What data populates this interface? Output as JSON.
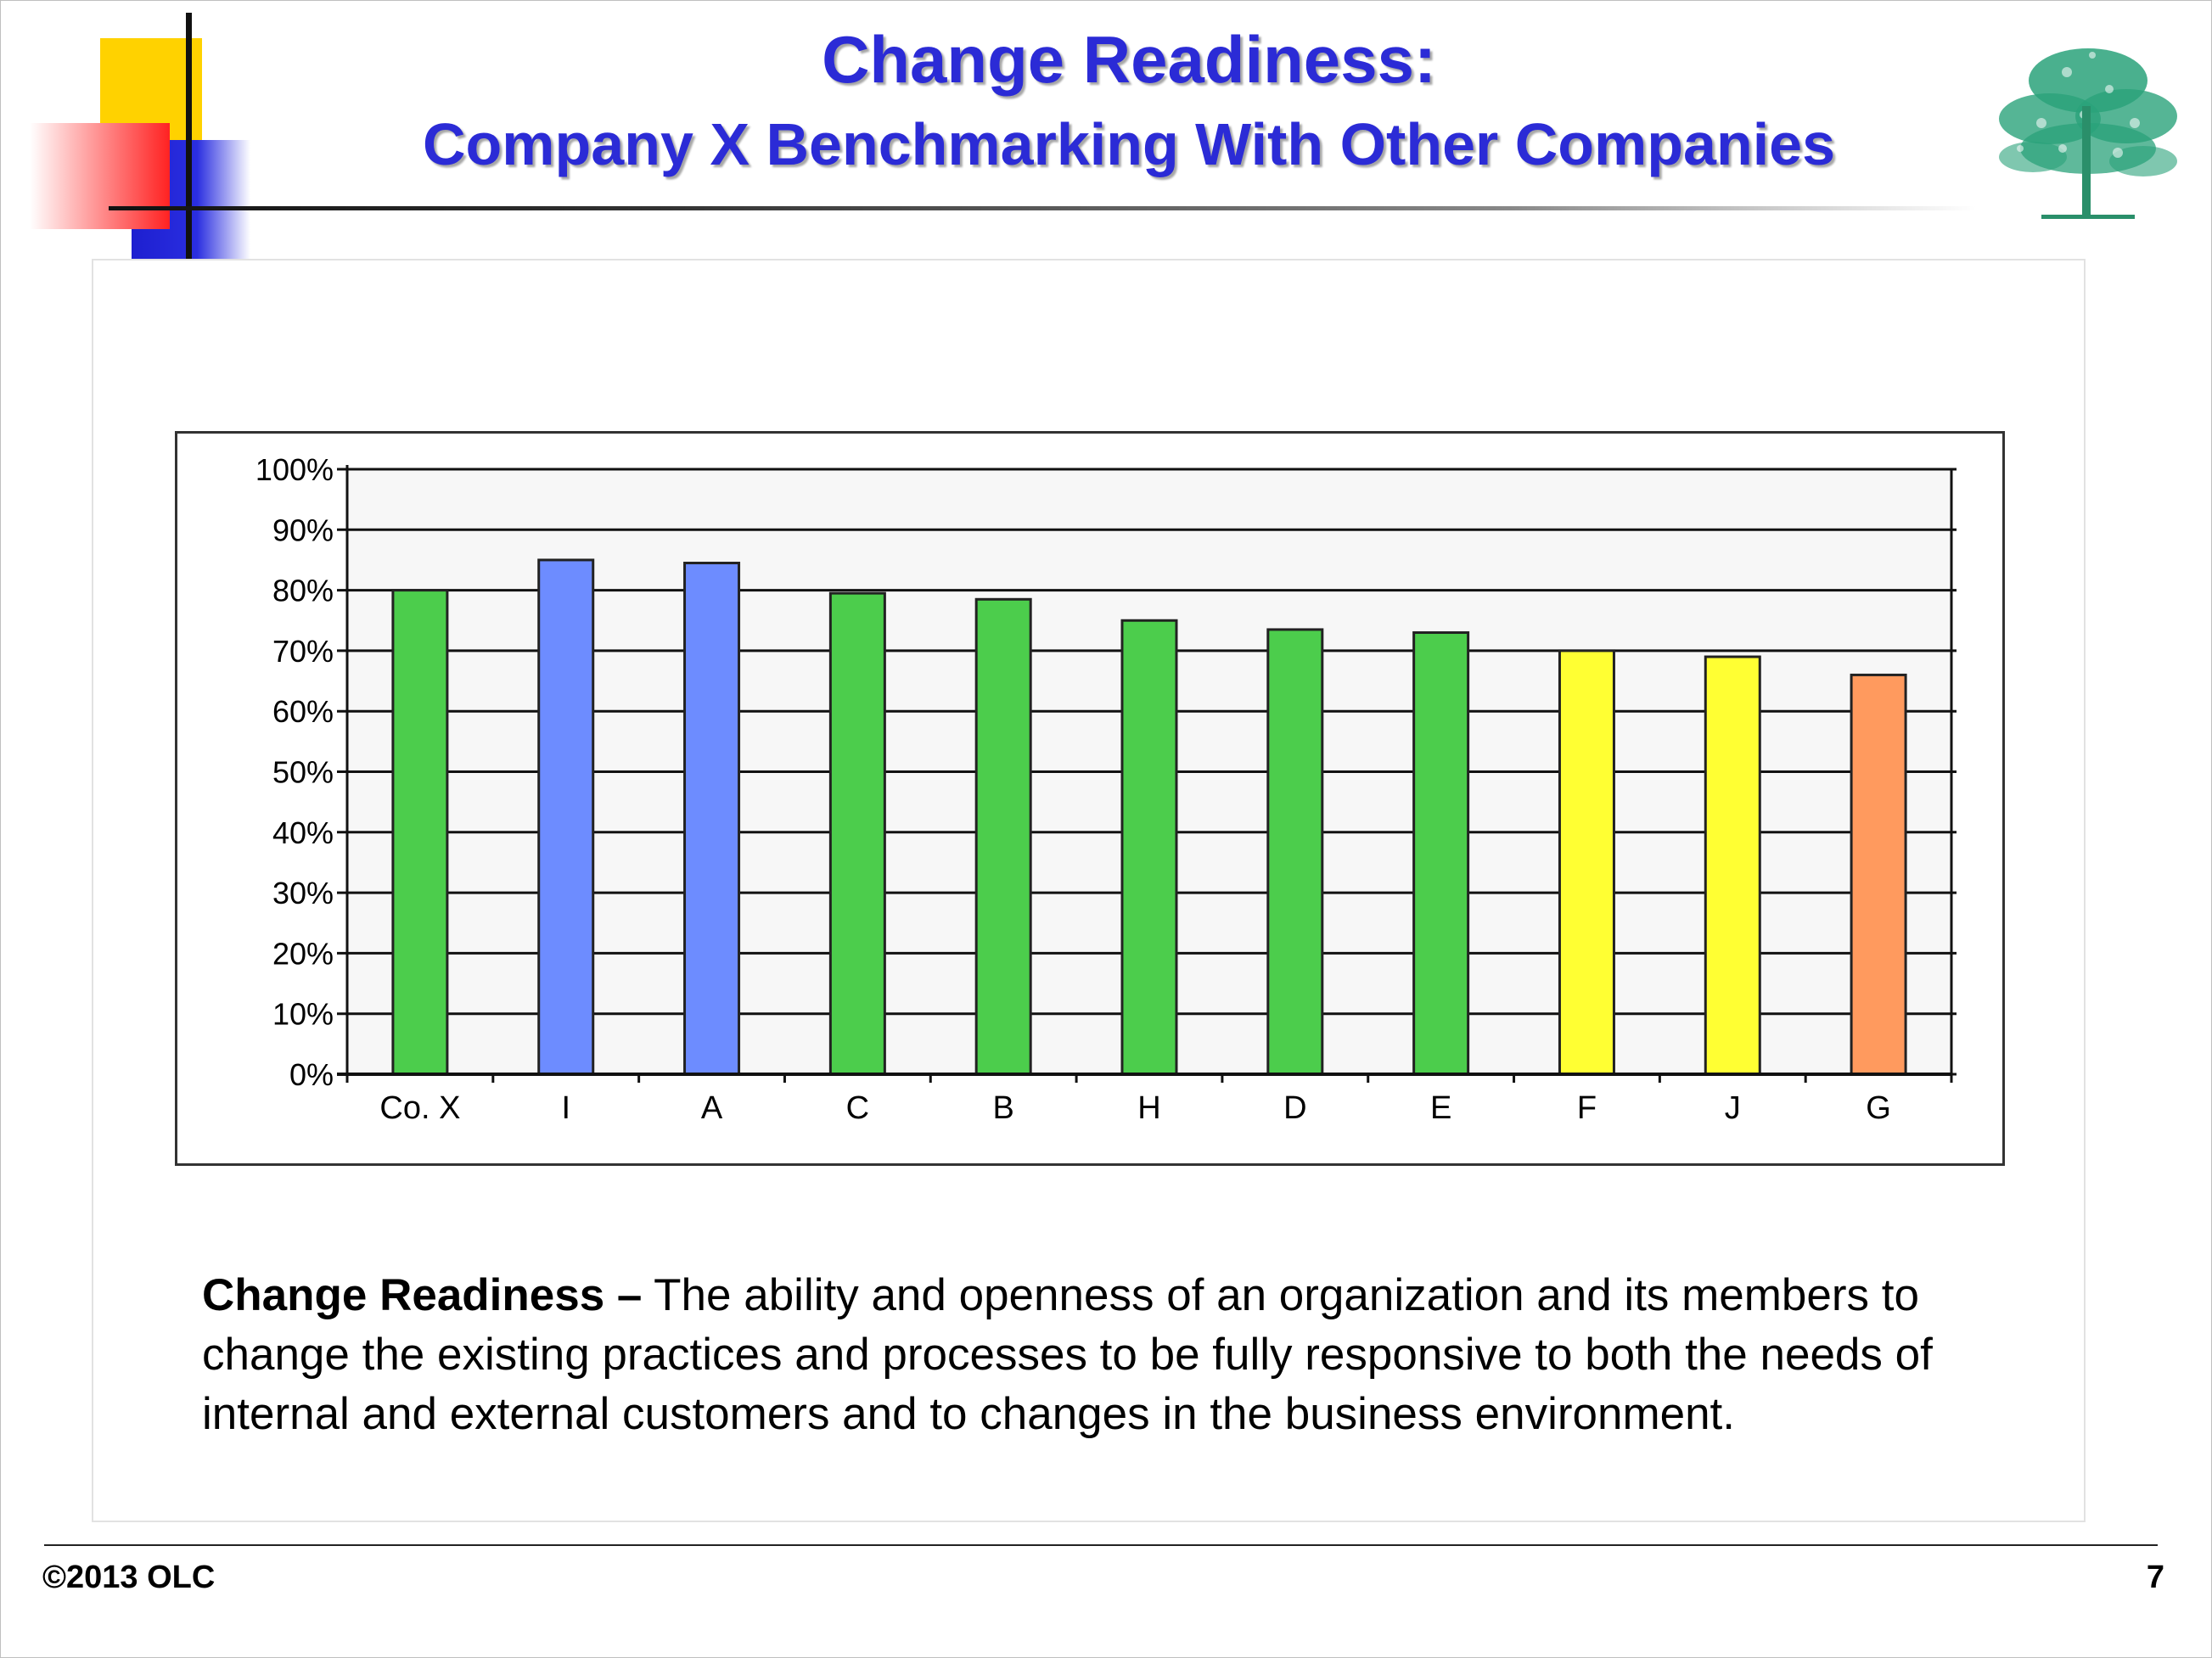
{
  "slide": {
    "title_line1": "Change Readiness:",
    "title_line2": "Company X Benchmarking With Other Companies",
    "definition_term": "Change Readiness –",
    "definition_text": " The ability and openness of an organization and its members to change the existing practices and processes to be fully responsive to both the needs of internal and external customers and to changes in the business environment.",
    "footer_left": "©2013 OLC",
    "page_number": "7"
  },
  "colors": {
    "title": "#2b2bd6",
    "green": "#4ccd4c",
    "blue": "#6d8cff",
    "yellow": "#ffff33",
    "orange": "#ff9a5e",
    "plot_background": "#f7f7f7"
  },
  "icons": [
    "tree-logo-icon"
  ],
  "chart_data": {
    "type": "bar",
    "title": "",
    "xlabel": "",
    "ylabel": "",
    "ylim": [
      0,
      100
    ],
    "y_tick_labels": [
      "0%",
      "10%",
      "20%",
      "30%",
      "40%",
      "50%",
      "60%",
      "70%",
      "80%",
      "90%",
      "100%"
    ],
    "grid": true,
    "legend": "none",
    "categories": [
      "Co. X",
      "I",
      "A",
      "C",
      "B",
      "H",
      "D",
      "E",
      "F",
      "J",
      "G"
    ],
    "values": [
      80,
      85,
      84.5,
      79.5,
      78.5,
      75,
      73.5,
      73,
      70,
      69,
      66
    ],
    "bar_colors": [
      "green",
      "blue",
      "blue",
      "green",
      "green",
      "green",
      "green",
      "green",
      "yellow",
      "yellow",
      "orange"
    ]
  }
}
